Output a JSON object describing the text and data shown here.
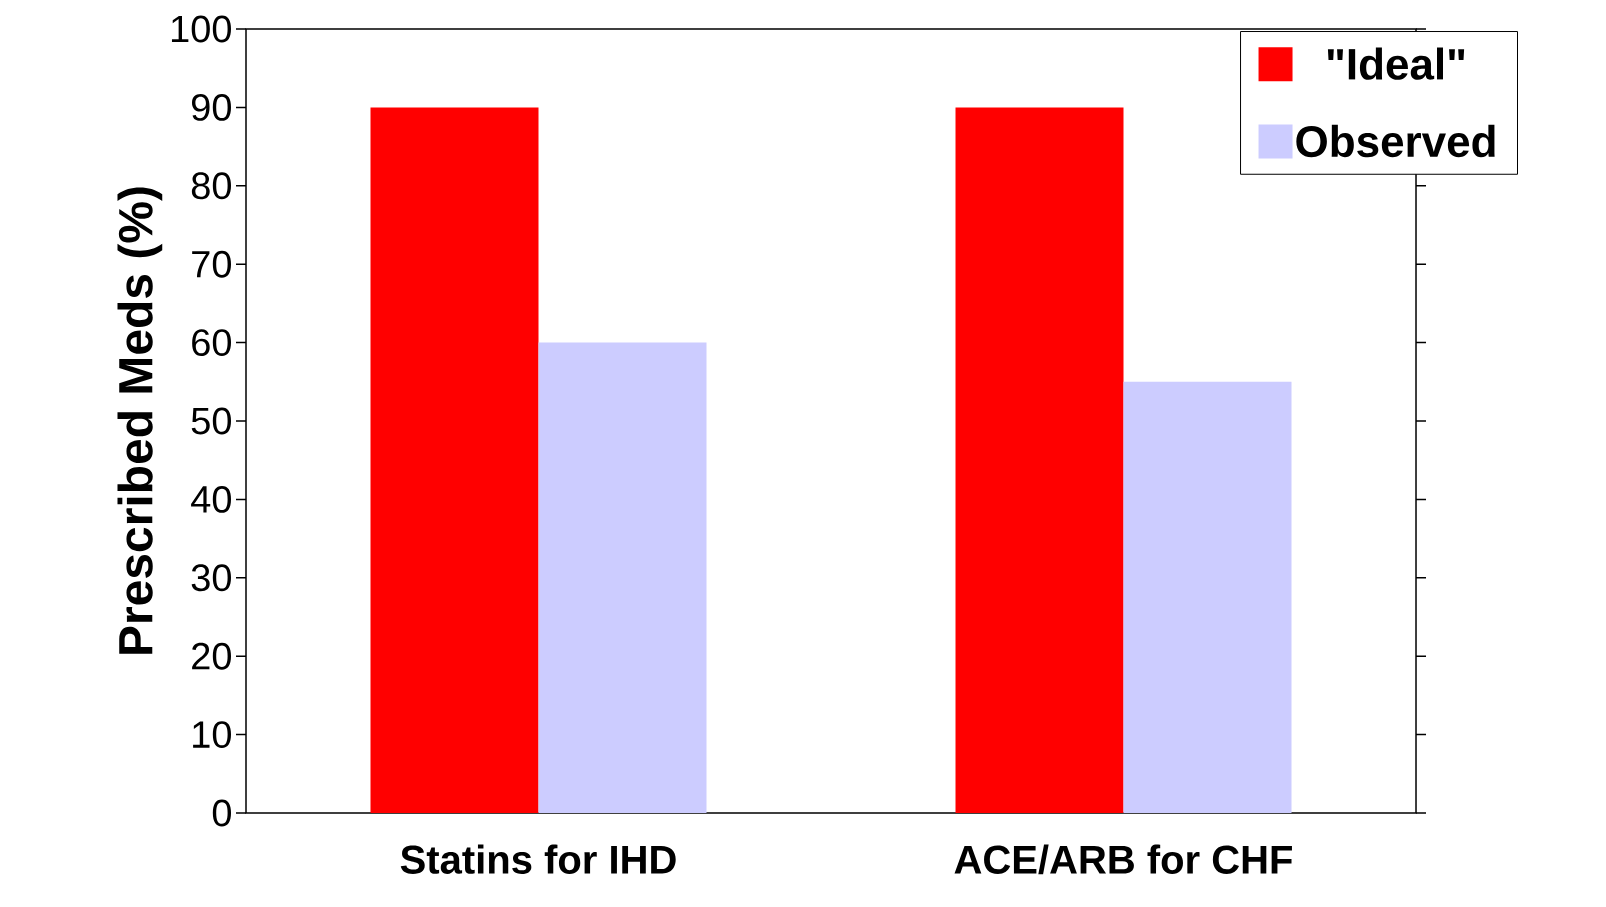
{
  "chart_data": {
    "type": "bar",
    "ylabel": "Prescribed Meds (%)",
    "categories": [
      "Statins for IHD",
      "ACE/ARB for CHF"
    ],
    "series": [
      {
        "name": "\"Ideal\"",
        "color": "#ff0000",
        "values": [
          90,
          90
        ]
      },
      {
        "name": "Observed",
        "color": "#ccccff",
        "values": [
          60,
          55
        ]
      }
    ],
    "ylim": [
      0,
      100
    ],
    "yticks": [
      0,
      10,
      20,
      30,
      40,
      50,
      60,
      70,
      80,
      90,
      100
    ],
    "grid": false,
    "legend": "top right"
  }
}
